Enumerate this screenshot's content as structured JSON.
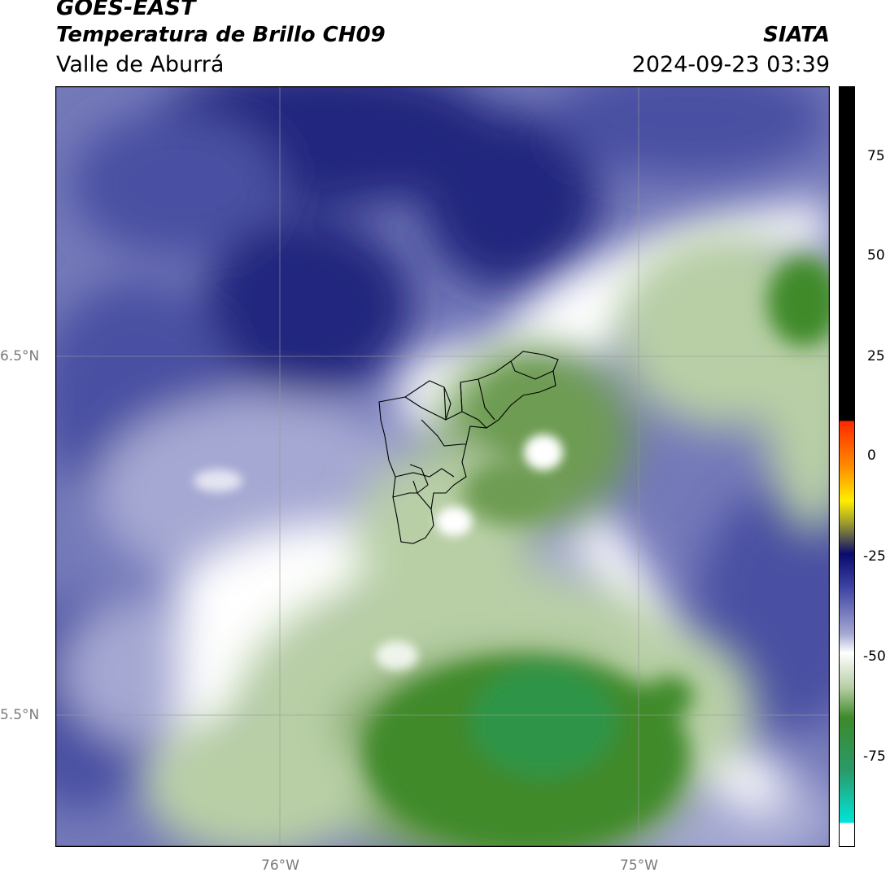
{
  "header": {
    "satellite": "GOES-EAST",
    "product": "Temperatura de Brillo CH09",
    "region": "Valle de Aburrá",
    "organization": "SIATA",
    "datetime": "2024-09-23 03:39"
  },
  "axes": {
    "lat_labels": [
      "6.5°N",
      "5.5°N"
    ],
    "lon_labels": [
      "76°W",
      "75°W"
    ]
  },
  "colorbar": {
    "ticks": [
      "75",
      "50",
      "25",
      "0",
      "-25",
      "-50",
      "-75"
    ],
    "colors": {
      "black": "#000000",
      "red": "#ff2a00",
      "orange": "#ff8c00",
      "yellow": "#ffee00",
      "navy": "#0a0a6e",
      "blue": "#3f45a4",
      "white": "#ffffff",
      "green": "#3d8a2a",
      "teal": "#2a9a6a",
      "cyan": "#00e5d8"
    }
  },
  "map_colors": {
    "cloud_dark": "#23267e",
    "cloud_mid": "#4a4fa2",
    "cloud_light": "#a5a8d2",
    "clear_white": "#ffffff",
    "veg_light": "#b8cfa6",
    "veg_mid": "#6e9c52",
    "veg_dark": "#3f8a2c",
    "veg_teal": "#2f9446"
  }
}
